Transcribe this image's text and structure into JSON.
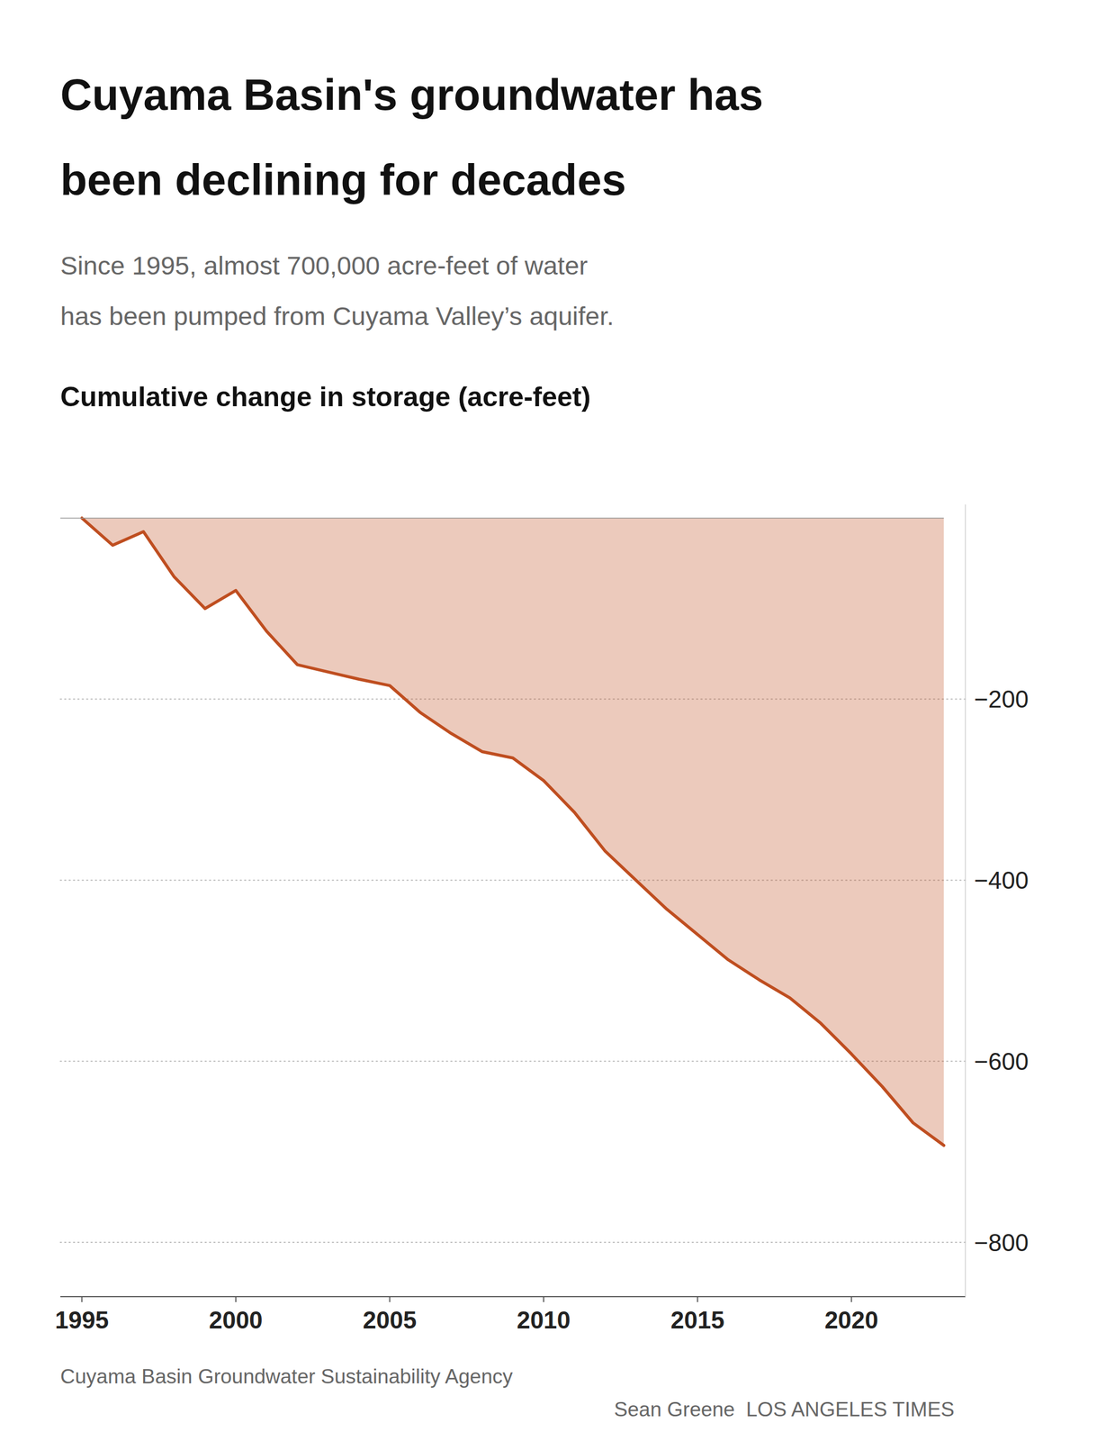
{
  "chart_data": {
    "type": "area",
    "title": [
      "Cuyama Basin's groundwater has",
      "been declining for decades"
    ],
    "subtitle": [
      "Since 1995, almost 700,000 acre-feet of water",
      "has been pumped from Cuyama Valley’s aquifer."
    ],
    "y_label": "Cumulative change in storage (acre-feet)",
    "annotations": [
      "Cuyama Basin Groundwater Sustainability Agency",
      "Sean Greene  LOS ANGELES TIMES"
    ],
    "color": "#bf4e20",
    "x": [
      1995,
      1996,
      1997,
      1998,
      1999,
      2000,
      2001,
      2002,
      2003,
      2004,
      2005,
      2006,
      2007,
      2008,
      2009,
      2010,
      2011,
      2012,
      2013,
      2014,
      2015,
      2016,
      2017,
      2018,
      2019,
      2020,
      2021,
      2022,
      2023
    ],
    "values": [
      0,
      -30,
      -15,
      -65,
      -100,
      -80,
      -125,
      -162,
      -170,
      -178,
      -185,
      -215,
      -238,
      -258,
      -265,
      -290,
      -325,
      -368,
      -400,
      -432,
      -460,
      -488,
      -510,
      -530,
      -558,
      -592,
      -628,
      -668,
      -693
    ],
    "xlim": [
      1994.3,
      2023.7
    ],
    "ylim": [
      -860,
      15
    ],
    "xticks": [
      1995,
      2000,
      2005,
      2010,
      2015,
      2020
    ],
    "yticks": [
      {
        "value": -200,
        "label": "−200"
      },
      {
        "value": -400,
        "label": "−400"
      },
      {
        "value": -600,
        "label": "−600"
      },
      {
        "value": -800,
        "label": "−800"
      }
    ],
    "grid": "y"
  }
}
